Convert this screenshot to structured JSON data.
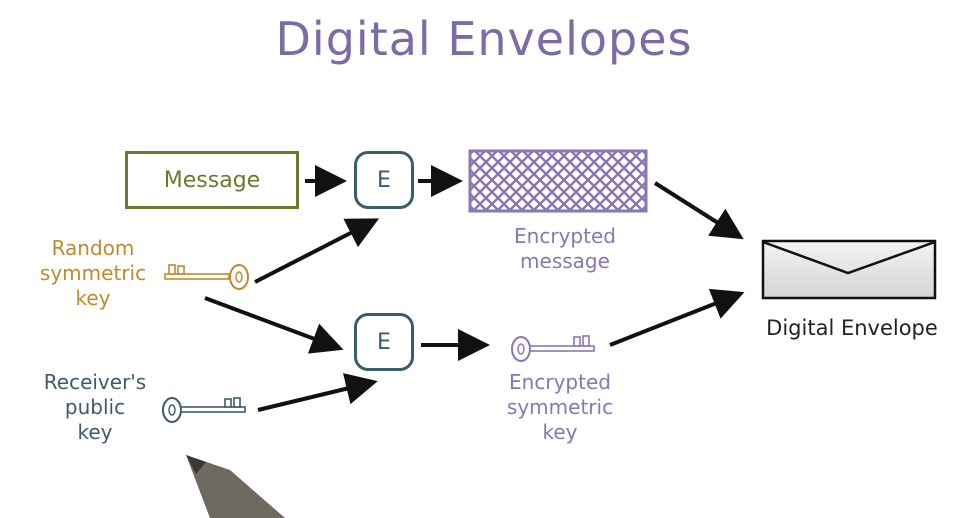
{
  "title": "Digital Envelopes",
  "nodes": {
    "message": "Message",
    "encrypt_top": "E",
    "encrypt_bottom": "E",
    "random_key_label": [
      "Random",
      "symmetric",
      "key"
    ],
    "receiver_key_label": [
      "Receiver's",
      "public",
      "key"
    ],
    "encrypted_message_label": [
      "Encrypted",
      "message"
    ],
    "encrypted_key_label": [
      "Encrypted",
      "symmetric",
      "key"
    ],
    "envelope_label": "Digital Envelope"
  },
  "colors": {
    "title": "#7d6ba6",
    "message": "#6a7a2e",
    "encrypt": "#3b5c6a",
    "random_key": "#c08a2e",
    "receiver_key": "#3b5c6a",
    "encrypted": "#8a76b4",
    "arrow": "#111111"
  },
  "icons": [
    "key-icon",
    "pen-tip-icon",
    "envelope-icon"
  ]
}
